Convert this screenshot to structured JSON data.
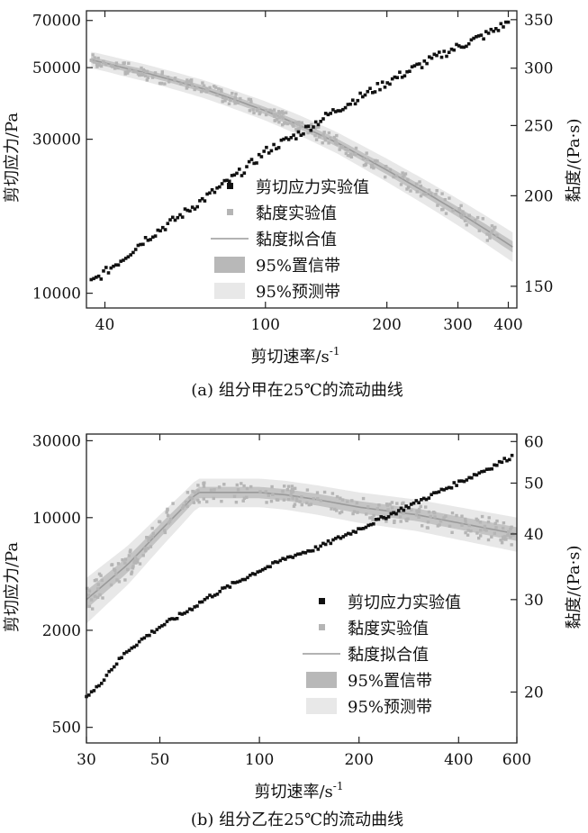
{
  "chart_data": [
    {
      "type": "scatter",
      "caption": "(a) 组分甲在25℃的流动曲线",
      "xlabel": "剪切速率/s",
      "xlabel_sup": "-1",
      "ylabel_left": "剪切应力/Pa",
      "ylabel_right": "黏度/(Pa·s)",
      "x_scale": "log",
      "xlim": [
        36,
        420
      ],
      "y_left_scale": "log",
      "y_left_lim": [
        9000,
        75000
      ],
      "y_right_scale": "log",
      "y_right_lim": [
        140,
        360
      ],
      "x_ticks": [
        {
          "value": 40,
          "label": "40"
        },
        {
          "value": 100,
          "label": "100"
        },
        {
          "value": 200,
          "label": "200"
        },
        {
          "value": 300,
          "label": "300"
        },
        {
          "value": 400,
          "label": "400"
        }
      ],
      "y_left_ticks": [
        {
          "value": 10000,
          "label": "10000"
        },
        {
          "value": 30000,
          "label": "30000"
        },
        {
          "value": 50000,
          "label": "50000"
        },
        {
          "value": 70000,
          "label": "70000"
        }
      ],
      "y_right_ticks": [
        {
          "value": 150,
          "label": "150"
        },
        {
          "value": 200,
          "label": "200"
        },
        {
          "value": 250,
          "label": "250"
        },
        {
          "value": 300,
          "label": "300"
        },
        {
          "value": 350,
          "label": "350"
        }
      ],
      "legend": [
        {
          "key": "stress",
          "label": "剪切应力实验值"
        },
        {
          "key": "viscosity",
          "label": "黏度实验值"
        },
        {
          "key": "fit",
          "label": "黏度拟合值"
        },
        {
          "key": "confidence",
          "label": "95%置信带"
        },
        {
          "key": "prediction",
          "label": "95%预测带"
        }
      ],
      "series": [
        {
          "name": "剪切应力实验值",
          "axis": "left",
          "x": [
            37,
            40,
            45,
            50,
            55,
            60,
            70,
            80,
            90,
            100,
            120,
            150,
            200,
            250,
            300,
            350,
            400
          ],
          "y": [
            10800,
            11600,
            13000,
            14600,
            15800,
            17000,
            19500,
            22000,
            24500,
            27500,
            31000,
            37000,
            45000,
            52000,
            58000,
            63000,
            69000
          ]
        },
        {
          "name": "黏度实验值",
          "axis": "right",
          "x": [
            37,
            40,
            45,
            50,
            60,
            70,
            80,
            100,
            120,
            150,
            200,
            250,
            300,
            350,
            400
          ],
          "y": [
            308,
            305,
            300,
            295,
            288,
            281,
            274,
            262,
            251,
            237,
            217,
            202,
            190,
            180,
            172
          ]
        },
        {
          "name": "黏度拟合值",
          "axis": "right",
          "x": [
            37,
            40,
            45,
            50,
            60,
            70,
            80,
            100,
            120,
            150,
            200,
            250,
            300,
            350,
            410
          ],
          "y": [
            308,
            305,
            300,
            296,
            288,
            281,
            274,
            262,
            251,
            237,
            217,
            202,
            190,
            180,
            170
          ]
        }
      ],
      "confidence_halfwidth": 3,
      "prediction_halfwidth": 8
    },
    {
      "type": "scatter",
      "caption": "(b) 组分乙在25℃的流动曲线",
      "xlabel": "剪切速率/s",
      "xlabel_sup": "-1",
      "ylabel_left": "剪切应力/Pa",
      "ylabel_right": "黏度/(Pa·s)",
      "x_scale": "log",
      "xlim": [
        30,
        600
      ],
      "y_left_scale": "log",
      "y_left_lim": [
        400,
        33000
      ],
      "y_right_scale": "log",
      "y_right_lim": [
        16,
        62
      ],
      "x_ticks": [
        {
          "value": 30,
          "label": "30"
        },
        {
          "value": 50,
          "label": "50"
        },
        {
          "value": 100,
          "label": "100"
        },
        {
          "value": 200,
          "label": "200"
        },
        {
          "value": 400,
          "label": "400"
        },
        {
          "value": 600,
          "label": "600"
        }
      ],
      "y_left_ticks": [
        {
          "value": 500,
          "label": "500"
        },
        {
          "value": 2000,
          "label": "2000"
        },
        {
          "value": 10000,
          "label": "10000"
        },
        {
          "value": 30000,
          "label": "30000"
        }
      ],
      "y_right_ticks": [
        {
          "value": 20,
          "label": "20"
        },
        {
          "value": 30,
          "label": "30"
        },
        {
          "value": 40,
          "label": "40"
        },
        {
          "value": 50,
          "label": "50"
        },
        {
          "value": 60,
          "label": "60"
        }
      ],
      "legend": [
        {
          "key": "stress",
          "label": "剪切应力实验值"
        },
        {
          "key": "viscosity",
          "label": "黏度实验值"
        },
        {
          "key": "fit",
          "label": "黏度拟合值"
        },
        {
          "key": "confidence",
          "label": "95%置信带"
        },
        {
          "key": "prediction",
          "label": "95%预测带"
        }
      ],
      "series": [
        {
          "name": "剪切应力实验值",
          "axis": "left",
          "x": [
            30,
            32,
            35,
            40,
            45,
            50,
            60,
            70,
            80,
            90,
            100,
            110,
            120,
            150,
            200,
            250,
            300,
            400,
            500,
            580
          ],
          "y": [
            780,
            860,
            1100,
            1500,
            1800,
            2100,
            2600,
            3200,
            3700,
            4200,
            4700,
            5100,
            5600,
            6500,
            8500,
            10500,
            12500,
            16500,
            20500,
            24000
          ]
        },
        {
          "name": "黏度实验值",
          "axis": "right",
          "x": [
            30,
            35,
            40,
            45,
            50,
            55,
            60,
            65,
            70,
            80,
            90,
            100,
            110,
            120,
            150,
            200,
            300,
            400,
            500,
            600
          ],
          "y": [
            30,
            33,
            35,
            38,
            41,
            44,
            46,
            48,
            48,
            48,
            48,
            48,
            48,
            47.5,
            46.5,
            45,
            43.5,
            42,
            41,
            40
          ]
        },
        {
          "name": "黏度拟合值",
          "axis": "right",
          "x": [
            30,
            40,
            50,
            60,
            65,
            80,
            100,
            120,
            150,
            200,
            300,
            400,
            600
          ],
          "y": [
            30,
            35,
            40.5,
            45.5,
            48,
            48,
            48,
            47.5,
            46.5,
            45,
            43.5,
            42,
            40
          ]
        }
      ],
      "confidence_halfwidth": 1.2,
      "prediction_halfwidth": 3
    }
  ]
}
